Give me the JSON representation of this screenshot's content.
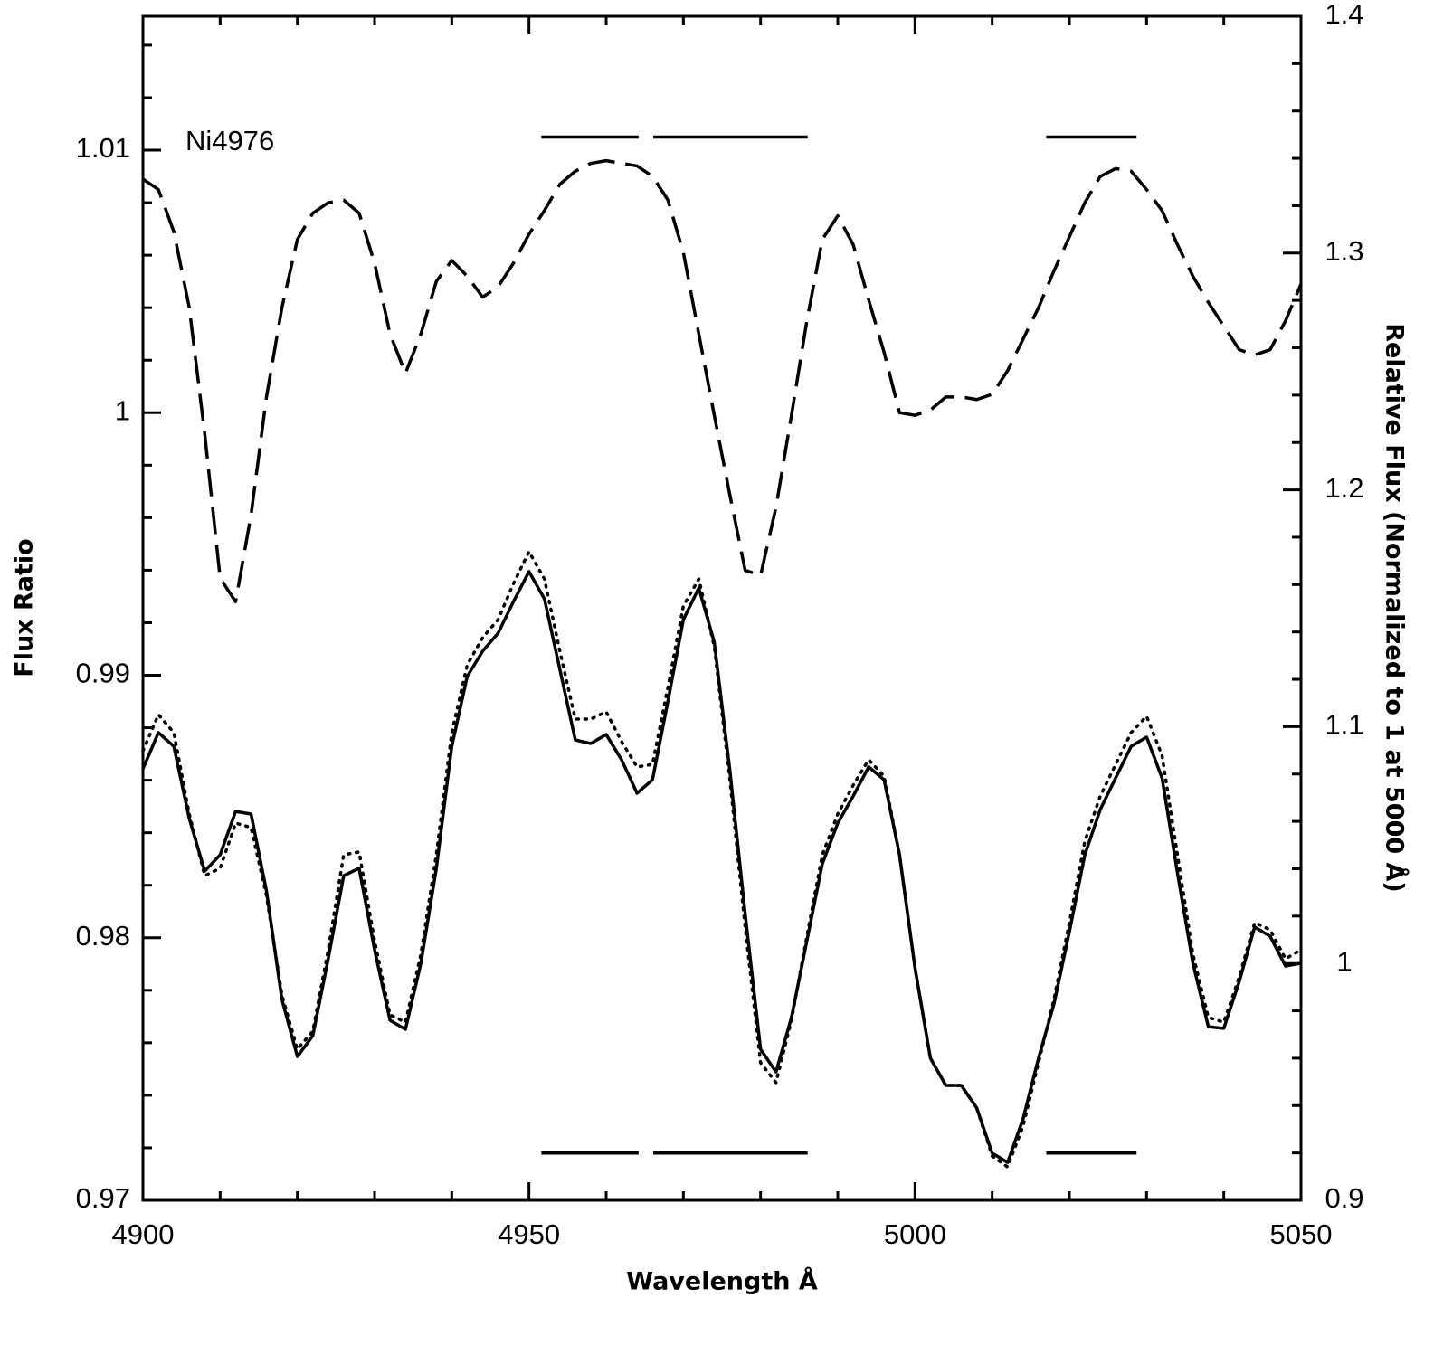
{
  "chart_data": {
    "type": "line",
    "annotation": "Ni4976",
    "xlabel": "Wavelength Å",
    "ylabel": "Flux Ratio",
    "y2label": "Relative Flux (Normalized to 1 at 5000 Å)",
    "xlim": [
      4900,
      5050
    ],
    "xticks": [
      4900,
      4950,
      5000,
      5050
    ],
    "xminorticks": [
      4910,
      4920,
      4930,
      4940,
      4960,
      4970,
      4980,
      4990,
      5010,
      5020,
      5030,
      5040
    ],
    "ylim": [
      0.97,
      1.0151
    ],
    "yticks": [
      0.97,
      0.98,
      0.99,
      1,
      1.01
    ],
    "yminorticks": [
      0.972,
      0.974,
      0.976,
      0.978,
      0.982,
      0.984,
      0.986,
      0.988,
      0.992,
      0.994,
      0.996,
      0.998,
      1.002,
      1.004,
      1.006,
      1.008,
      1.012,
      1.014
    ],
    "y2lim": [
      0.9,
      1.4
    ],
    "y2ticks": [
      0.9,
      1,
      1.1,
      1.2,
      1.3,
      1.4
    ],
    "y2minorticks": [
      0.92,
      0.94,
      0.96,
      0.98,
      1.02,
      1.04,
      1.06,
      1.08,
      1.12,
      1.14,
      1.16,
      1.18,
      1.22,
      1.24,
      1.26,
      1.28,
      1.32,
      1.34,
      1.36,
      1.38
    ],
    "bands": [
      [
        4951.6,
        4964.2
      ],
      [
        4966.1,
        4986.1
      ],
      [
        5017,
        5028.7
      ]
    ],
    "band_levels": [
      1.0105,
      0.9718
    ],
    "x": [
      4900,
      4902,
      4904,
      4906,
      4908,
      4910,
      4912,
      4914,
      4916,
      4918,
      4920,
      4922,
      4924,
      4926,
      4928,
      4930,
      4932,
      4934,
      4936,
      4938,
      4940,
      4942,
      4944,
      4946,
      4948,
      4950,
      4952,
      4954,
      4956,
      4958,
      4960,
      4962,
      4964,
      4966,
      4968,
      4970,
      4972,
      4974,
      4976,
      4978,
      4980,
      4982,
      4984,
      4986,
      4988,
      4990,
      4992,
      4994,
      4996,
      4998,
      5000,
      5002,
      5004,
      5006,
      5008,
      5010,
      5012,
      5014,
      5016,
      5018,
      5020,
      5022,
      5024,
      5026,
      5028,
      5030,
      5032,
      5034,
      5036,
      5038,
      5040,
      5042,
      5044,
      5046,
      5048,
      5050
    ],
    "series": [
      {
        "color": "#000000",
        "dash": "dashed",
        "axis": "y",
        "values": [
          1.0089,
          1.0085,
          1.0069,
          1.004,
          0.9992,
          0.9937,
          0.9928,
          0.9961,
          1.0006,
          1.004,
          1.0066,
          1.0076,
          1.008,
          1.0081,
          1.0076,
          1.0057,
          1.003,
          1.0015,
          1.003,
          1.005,
          1.0058,
          1.0052,
          1.0044,
          1.0048,
          1.0057,
          1.0068,
          1.0077,
          1.0087,
          1.0092,
          1.0095,
          1.0096,
          1.0095,
          1.0094,
          1.009,
          1.0081,
          1.0061,
          1.003,
          0.9999,
          0.9969,
          0.994,
          0.9938,
          0.9964,
          0.9999,
          1.0035,
          1.0066,
          1.0075,
          1.0064,
          1.0043,
          1.0023,
          1.0,
          0.9999,
          1.0001,
          1.0006,
          1.0006,
          1.0005,
          1.0007,
          1.0016,
          1.0028,
          1.004,
          1.0054,
          1.0067,
          1.008,
          1.009,
          1.0093,
          1.0092,
          1.0085,
          1.0077,
          1.0064,
          1.0052,
          1.0042,
          1.0033,
          1.0024,
          1.0022,
          1.0024,
          1.0035,
          1.0049
        ]
      },
      {
        "color": "#000000",
        "dash": "solid",
        "axis": "y2",
        "values": [
          1.0822,
          1.0975,
          1.0917,
          1.0612,
          1.039,
          1.0459,
          1.0642,
          1.0631,
          1.0306,
          0.9848,
          0.9607,
          0.9695,
          1.002,
          1.0371,
          1.0402,
          1.0058,
          0.976,
          0.9722,
          1.0001,
          1.0402,
          1.0917,
          1.1212,
          1.1319,
          1.1395,
          1.1529,
          1.1655,
          1.154,
          1.1242,
          1.0944,
          1.0929,
          1.0967,
          1.086,
          1.0719,
          1.0776,
          1.1108,
          1.1452,
          1.1586,
          1.1357,
          1.0822,
          1.0211,
          0.9638,
          0.9542,
          0.9772,
          1.0096,
          1.0421,
          1.0593,
          1.0707,
          1.083,
          1.0776,
          1.0459,
          0.9982,
          0.96,
          0.9485,
          0.9485,
          0.939,
          0.9199,
          0.916,
          0.9344,
          0.96,
          0.9829,
          1.0134,
          1.0459,
          1.065,
          1.0784,
          1.0917,
          1.0956,
          1.0784,
          1.0383,
          1.0001,
          0.9733,
          0.9726,
          0.9924,
          1.0154,
          1.0115,
          0.9989,
          1.0001
        ]
      },
      {
        "color": "#000000",
        "dash": "dotted",
        "axis": "y2",
        "values": [
          1.0898,
          1.1051,
          1.0975,
          1.0631,
          1.0371,
          1.0402,
          1.0593,
          1.0574,
          1.0287,
          0.9867,
          0.9638,
          0.9714,
          1.0058,
          1.0459,
          1.0471,
          1.0096,
          0.9783,
          0.9752,
          1.0039,
          1.0459,
          1.0975,
          1.1261,
          1.1376,
          1.1452,
          1.1605,
          1.1739,
          1.1624,
          1.1319,
          1.1032,
          1.1032,
          1.1063,
          1.0937,
          1.083,
          1.0841,
          1.1166,
          1.151,
          1.1624,
          1.1338,
          1.0784,
          1.0154,
          0.9581,
          0.9497,
          0.976,
          1.0115,
          1.0459,
          1.0631,
          1.0753,
          1.086,
          1.0791,
          1.0459,
          0.9982,
          0.96,
          0.9485,
          0.9485,
          0.939,
          0.9187,
          0.9141,
          0.9313,
          0.9581,
          0.9848,
          1.0173,
          1.0516,
          1.0707,
          1.0841,
          1.0975,
          1.1044,
          1.0879,
          1.0459,
          1.0039,
          0.9772,
          0.9752,
          0.9943,
          1.0173,
          1.0142,
          1.002,
          1.0058
        ]
      }
    ]
  }
}
